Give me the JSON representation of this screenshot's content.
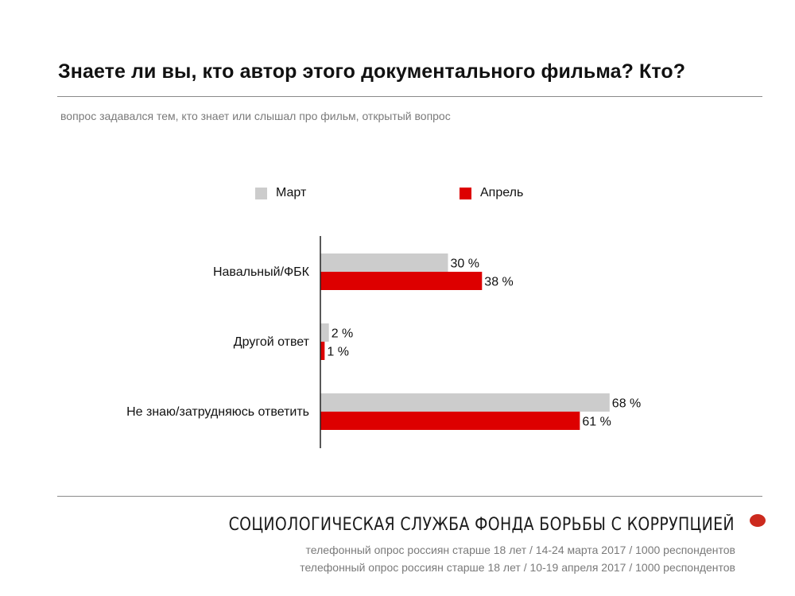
{
  "title": "Знаете ли вы, кто автор этого документального фильма? Кто?",
  "subtitle": "вопрос задавался тем, кто знает или слышал про фильм, открытый вопрос",
  "footer": {
    "org": "СОЦИОЛОГИЧЕСКАЯ СЛУЖБА ФОНДА БОРЬБЫ С КОРРУПЦИЕЙ",
    "note_march": "телефонный опрос россиян старше 18 лет / 14-24 марта 2017 / 1000 респондентов",
    "note_april": "телефонный опрос россиян старше 18 лет / 10-19 апреля 2017 / 1000 респондентов"
  },
  "colors": {
    "march": "#cccccc",
    "april": "#dd0000",
    "axis": "#222222",
    "brand_dot": "#cc2a1e"
  },
  "chart_data": {
    "type": "bar",
    "orientation": "horizontal",
    "categories": [
      "Навальный/ФБК",
      "Другой ответ",
      "Не знаю/затрудняюсь ответить"
    ],
    "series": [
      {
        "name": "Март",
        "values": [
          30,
          2,
          68
        ]
      },
      {
        "name": "Апрель",
        "values": [
          38,
          1,
          61
        ]
      }
    ],
    "value_suffix": " %",
    "xlim": [
      0,
      100
    ],
    "grid": false,
    "legend_position": "top"
  }
}
